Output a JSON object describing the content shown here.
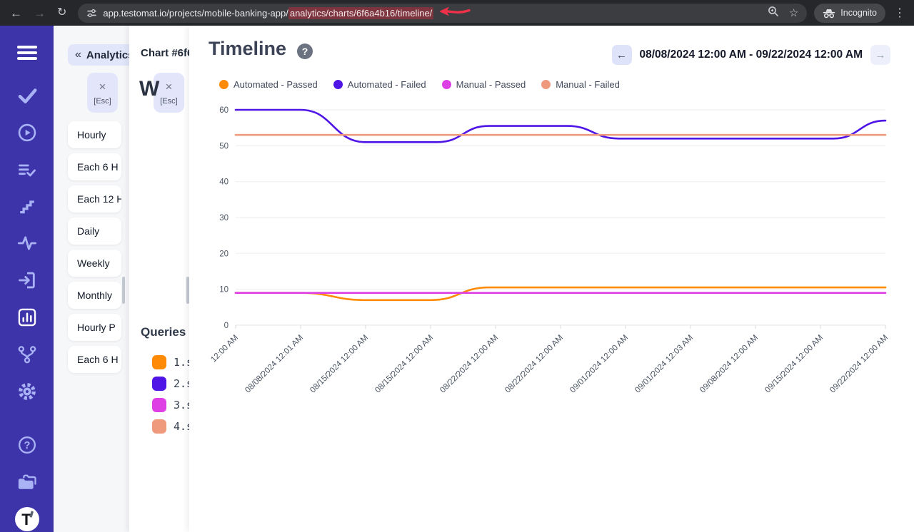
{
  "browser": {
    "url_prefix": "app.testomat.io/projects/mobile-banking-app/",
    "url_highlighted": "analytics/charts/6f6a4b16/timeline/",
    "incognito_label": "Incognito",
    "icons": {
      "back": "←",
      "forward": "→",
      "reload": "↻",
      "star": "☆",
      "menu": "⋮"
    }
  },
  "analytics_panel": {
    "title": "Analytics",
    "collapse_icon": "«",
    "close_icon": "×",
    "esc_label": "[Esc]",
    "items": [
      "Hourly",
      "Each 6 H",
      "Each 12 H",
      "Daily",
      "Weekly",
      "Monthly",
      "Hourly P",
      "Each 6 H"
    ]
  },
  "chart_panel": {
    "title": "Chart #6f6",
    "close_icon": "×",
    "esc_label": "[Esc]",
    "heading_clipped": "W",
    "queries_title": "Queries",
    "queries": [
      {
        "label": "1.s",
        "color": "#ff8a05"
      },
      {
        "label": "2.s",
        "color": "#4e15e6"
      },
      {
        "label": "3.s",
        "color": "#dd3fe4"
      },
      {
        "label": "4.s",
        "color": "#ef9a7c"
      }
    ]
  },
  "main": {
    "title": "Timeline",
    "help_icon": "?",
    "prev_icon": "←",
    "next_icon": "→",
    "date_range": "08/08/2024 12:00 AM - 09/22/2024 12:00 AM"
  },
  "chart_data": {
    "type": "line",
    "title": "Timeline",
    "ylim": [
      0,
      60
    ],
    "y_ticks": [
      0,
      10,
      20,
      30,
      40,
      50,
      60
    ],
    "x_tick_labels": [
      "12:00 AM",
      "08/08/2024 12:01 AM",
      "08/15/2024 12:00 AM",
      "08/15/2024 12:00 AM",
      "08/22/2024 12:00 AM",
      "08/22/2024 12:00 AM",
      "09/01/2024 12:00 AM",
      "09/01/2024 12:03 AM",
      "09/08/2024 12:00 AM",
      "09/15/2024 12:00 AM",
      "09/22/2024 12:00 AM"
    ],
    "grid": true,
    "legend_position": "top",
    "series": [
      {
        "name": "Automated - Passed",
        "color": "#ff8a05",
        "points": [
          [
            0,
            9
          ],
          [
            0.1,
            9
          ],
          [
            0.2,
            7
          ],
          [
            0.3,
            7
          ],
          [
            0.39,
            10.5
          ],
          [
            1,
            10.5
          ]
        ]
      },
      {
        "name": "Automated - Failed",
        "color": "#4e15e6",
        "points": [
          [
            0,
            60
          ],
          [
            0.1,
            60
          ],
          [
            0.2,
            51
          ],
          [
            0.31,
            51
          ],
          [
            0.39,
            55.5
          ],
          [
            0.51,
            55.5
          ],
          [
            0.59,
            52
          ],
          [
            0.92,
            52
          ],
          [
            1,
            57
          ]
        ]
      },
      {
        "name": "Manual - Passed",
        "color": "#dd3fe4",
        "points": [
          [
            0,
            9
          ],
          [
            1,
            9
          ]
        ]
      },
      {
        "name": "Manual - Failed",
        "color": "#ef9a7c",
        "points": [
          [
            0,
            53
          ],
          [
            1,
            53
          ]
        ]
      }
    ]
  }
}
